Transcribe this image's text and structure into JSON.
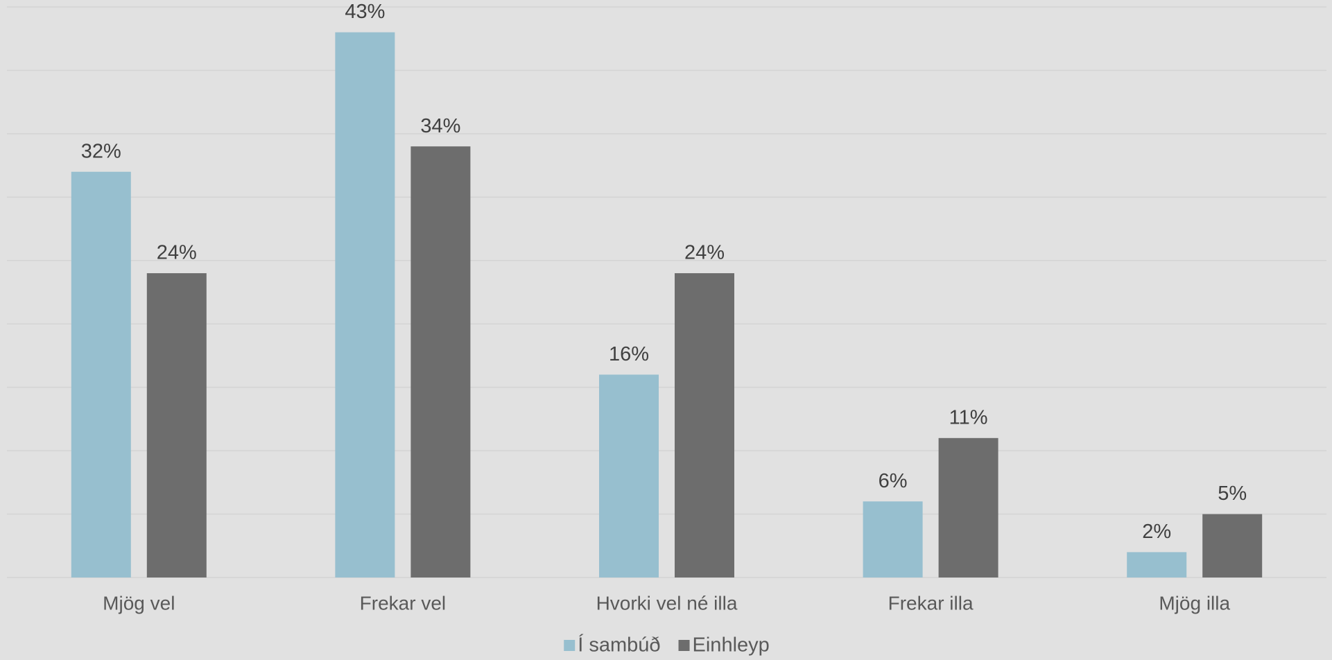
{
  "chart_data": {
    "type": "bar",
    "categories": [
      "Mjög vel",
      "Frekar vel",
      "Hvorki vel né illa",
      "Frekar illa",
      "Mjög illa"
    ],
    "series": [
      {
        "name": "Í sambúð",
        "color": "#97bfcf",
        "values": [
          32,
          43,
          16,
          6,
          2
        ],
        "value_labels": [
          "32%",
          "43%",
          "16%",
          "6%",
          "2%"
        ]
      },
      {
        "name": "Einhleyp",
        "color": "#6d6d6d",
        "values": [
          24,
          34,
          24,
          11,
          5
        ],
        "value_labels": [
          "24%",
          "34%",
          "24%",
          "11%",
          "5%"
        ]
      }
    ],
    "ylim": [
      0,
      45
    ],
    "yticks": [
      0,
      5,
      10,
      15,
      20,
      25,
      30,
      35,
      40,
      45
    ],
    "grid": true,
    "legend": "bottom"
  }
}
